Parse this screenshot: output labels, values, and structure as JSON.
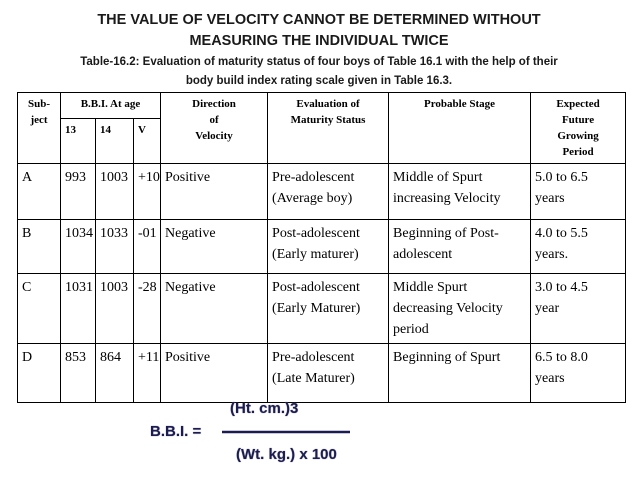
{
  "title": [
    "THE VALUE OF VELOCITY CANNOT BE DETERMINED WITHOUT",
    "MEASURING THE INDIVIDUAL TWICE"
  ],
  "caption": [
    "Table-16.2:  Evaluation of maturity status of four boys of Table 16.1 with the help of their",
    "body build index rating scale given in Table 16.3."
  ],
  "table": {
    "header": [
      [
        "Sub-",
        "ject"
      ],
      [
        "B.B.I. At age"
      ],
      [
        "Direction",
        "of",
        "Velocity"
      ],
      [
        "Evaluation of",
        "Maturity Status"
      ],
      [
        "Probable Stage"
      ],
      [
        "Expected",
        "Future",
        "Growing",
        "Period"
      ]
    ],
    "subheader": [
      "13",
      "14",
      "V"
    ],
    "rows": [
      [
        [
          "A"
        ],
        [
          "993"
        ],
        [
          "1003"
        ],
        [
          "+10"
        ],
        [
          "Positive"
        ],
        [
          "Pre-adolescent",
          "(Average boy)"
        ],
        [
          "Middle of Spurt",
          "increasing Velocity"
        ],
        [
          "5.0 to 6.5",
          "years"
        ]
      ],
      [
        [
          "B"
        ],
        [
          "1034"
        ],
        [
          "1033"
        ],
        [
          "-01"
        ],
        [
          "Negative"
        ],
        [
          "Post-adolescent",
          "(Early maturer)"
        ],
        [
          "Beginning of  Post-",
          "adolescent"
        ],
        [
          "4.0 to 5.5",
          "years."
        ]
      ],
      [
        [
          "C"
        ],
        [
          "1031"
        ],
        [
          "1003"
        ],
        [
          "-28"
        ],
        [
          "Negative"
        ],
        [
          "Post-adolescent",
          "(Early Maturer)"
        ],
        [
          "Middle Spurt",
          "decreasing Velocity",
          "period"
        ],
        [
          "3.0 to 4.5",
          "year"
        ]
      ],
      [
        [
          "D"
        ],
        [
          "853"
        ],
        [
          "864"
        ],
        [
          "+11"
        ],
        [
          "Positive"
        ],
        [
          "Pre-adolescent",
          "(Late Maturer)"
        ],
        [
          "Beginning of Spurt"
        ],
        [
          "6.5 to 8.0",
          "years"
        ]
      ]
    ]
  },
  "formula": {
    "numerator": "(Ht. cm.)3",
    "lhs": "B.B.I. =",
    "denominator": "(Wt. kg.) x 100"
  }
}
